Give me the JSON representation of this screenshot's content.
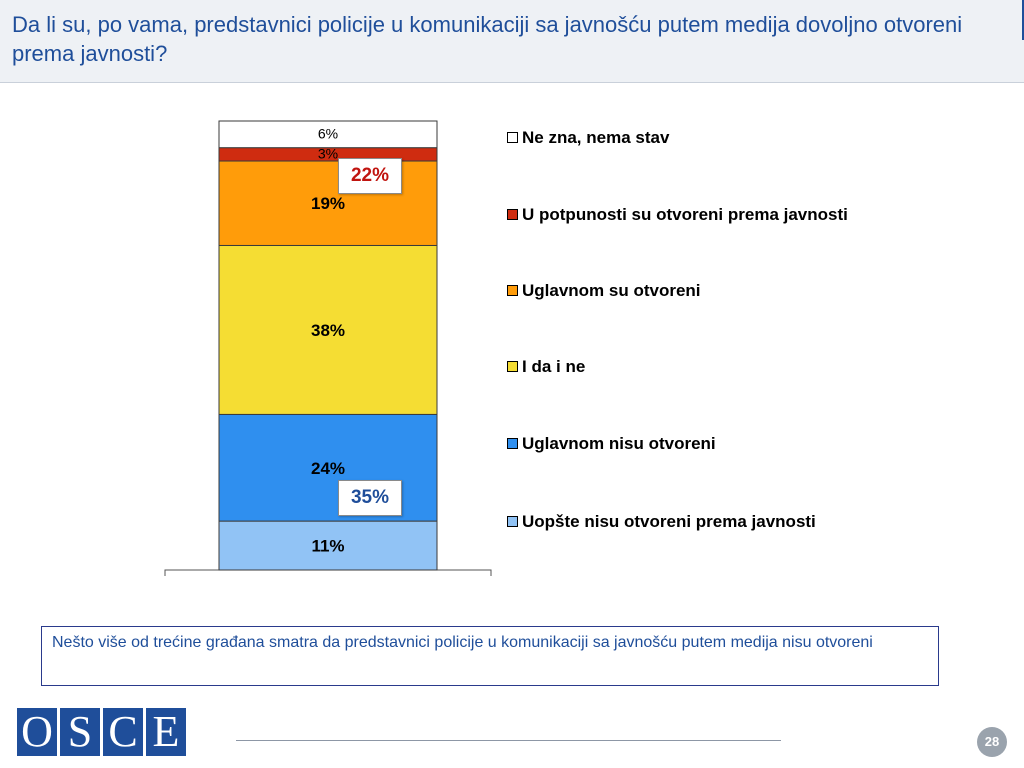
{
  "slide": {
    "title": "Da li su, po vama, predstavnici policije u komunikaciji sa javnošću putem medija dovoljno otvoreni prema javnosti?",
    "note": "Nešto više od trećine građana smatra da predstavnici policije u komunikaciji sa javnošću putem medija nisu otvoreni",
    "page_number": "28"
  },
  "logo": {
    "letters": [
      "O",
      "S",
      "C",
      "E"
    ]
  },
  "callouts": {
    "open_total": {
      "label": "22%",
      "color": "#c0140f"
    },
    "not_open_total": {
      "label": "35%",
      "color": "#1f4e9a"
    }
  },
  "chart_data": {
    "type": "bar",
    "stacked": true,
    "series": [
      {
        "name": "Uopšte nisu otvoreni prema javnosti",
        "value": 11,
        "label": "11%",
        "color": "#91c3f5"
      },
      {
        "name": "Uglavnom nisu otvoreni",
        "value": 24,
        "label": "24%",
        "color": "#2f8fef"
      },
      {
        "name": "I da i ne",
        "value": 38,
        "label": "38%",
        "color": "#f5dd33"
      },
      {
        "name": "Uglavnom su otvoreni",
        "value": 19,
        "label": "19%",
        "color": "#ff9c0a"
      },
      {
        "name": "U potpunosti su otvoreni prema javnosti",
        "value": 3,
        "label": "3%",
        "color": "#cf2c10"
      },
      {
        "name": "Ne zna, nema stav",
        "value": 6,
        "label": "6%",
        "color": "#ffffff"
      }
    ],
    "legend_order": [
      5,
      4,
      3,
      2,
      1,
      0
    ],
    "legend_position": "right"
  }
}
